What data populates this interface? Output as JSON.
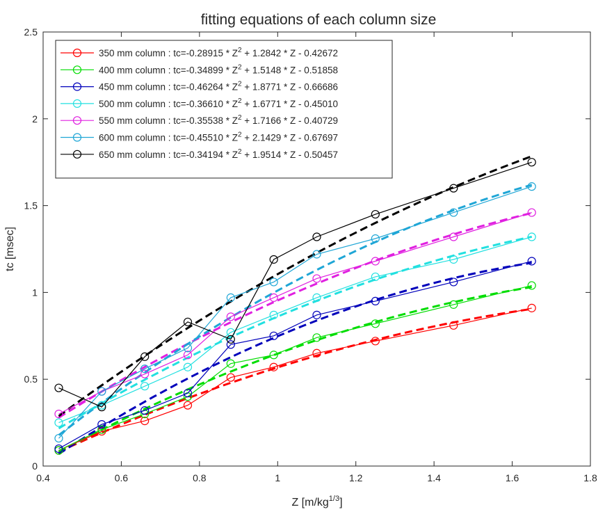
{
  "chart_data": {
    "type": "line",
    "title": "fitting equations of each column size",
    "xlabel": "Z [m/kg",
    "xlabel_sup": "1/3",
    "xlabel_end": "]",
    "ylabel": "tc [msec]",
    "xlim": [
      0.4,
      1.8
    ],
    "ylim": [
      0,
      2.5
    ],
    "xticks": [
      0.4,
      0.6,
      0.8,
      1,
      1.2,
      1.4,
      1.6,
      1.8
    ],
    "xtick_labels": [
      "0.4",
      "0.6",
      "0.8",
      "1",
      "1.2",
      "1.4",
      "1.6",
      "1.8"
    ],
    "yticks": [
      0,
      0.5,
      1,
      1.5,
      2,
      2.5
    ],
    "ytick_labels": [
      "0",
      "0.5",
      "1",
      "1.5",
      "2",
      "2.5"
    ],
    "grid": false,
    "legend_placement": "top-left",
    "x": [
      0.44,
      0.55,
      0.66,
      0.77,
      0.88,
      0.99,
      1.1,
      1.25,
      1.45,
      1.65
    ],
    "series": [
      {
        "name": "350 mm column",
        "color": "#ff0000",
        "legend_pre": "350 mm column : tc=-0.28915 * Z",
        "legend_post": " + 1.2842 * Z - 0.42672",
        "coef": [
          -0.28915,
          1.2842,
          -0.42672
        ],
        "values": [
          0.09,
          0.2,
          0.26,
          0.35,
          0.51,
          0.57,
          0.65,
          0.72,
          0.81,
          0.91
        ]
      },
      {
        "name": "400 mm column",
        "color": "#00dd00",
        "legend_pre": "400 mm column : tc=-0.34899 * Z",
        "legend_post": " + 1.5148 * Z - 0.51858",
        "coef": [
          -0.34899,
          1.5148,
          -0.51858
        ],
        "values": [
          0.09,
          0.21,
          0.3,
          0.4,
          0.59,
          0.64,
          0.74,
          0.82,
          0.93,
          1.04
        ]
      },
      {
        "name": "450 mm column",
        "color": "#0000bb",
        "legend_pre": "450 mm column : tc=-0.46264 * Z",
        "legend_post": " + 1.8771 * Z - 0.66686",
        "coef": [
          -0.46264,
          1.8771,
          -0.66686
        ],
        "values": [
          0.1,
          0.24,
          0.32,
          0.42,
          0.7,
          0.75,
          0.87,
          0.95,
          1.06,
          1.18
        ]
      },
      {
        "name": "500 mm column",
        "color": "#22e0e0",
        "legend_pre": "500 mm column : tc=-0.36610 * Z",
        "legend_post": " + 1.6771 * Z - 0.45010",
        "coef": [
          -0.3661,
          1.6771,
          -0.4501
        ],
        "values": [
          0.25,
          0.35,
          0.46,
          0.57,
          0.77,
          0.87,
          0.97,
          1.09,
          1.19,
          1.32
        ]
      },
      {
        "name": "550 mm column",
        "color": "#e020e0",
        "legend_pre": "550 mm column : tc=-0.35538 * Z",
        "legend_post": " + 1.7166 * Z - 0.40729",
        "coef": [
          -0.35538,
          1.7166,
          -0.40729
        ],
        "values": [
          0.3,
          0.43,
          0.53,
          0.64,
          0.86,
          0.97,
          1.08,
          1.18,
          1.32,
          1.46
        ]
      },
      {
        "name": "600 mm column",
        "color": "#1fa6d6",
        "legend_pre": "600 mm column : tc=-0.45510 * Z",
        "legend_post": " + 2.1429 * Z - 0.67697",
        "coef": [
          -0.4551,
          2.1429,
          -0.67697
        ],
        "values": [
          0.16,
          0.43,
          0.56,
          0.68,
          0.97,
          1.06,
          1.22,
          1.31,
          1.46,
          1.61
        ]
      },
      {
        "name": "650 mm column",
        "color": "#000000",
        "legend_pre": "650 mm column : tc=-0.34194 * Z",
        "legend_post": " + 1.9514 * Z - 0.50457",
        "coef": [
          -0.34194,
          1.9514,
          -0.50457
        ],
        "values": [
          0.45,
          0.34,
          0.63,
          0.83,
          0.73,
          1.19,
          1.32,
          1.45,
          1.6,
          1.75
        ]
      }
    ]
  }
}
